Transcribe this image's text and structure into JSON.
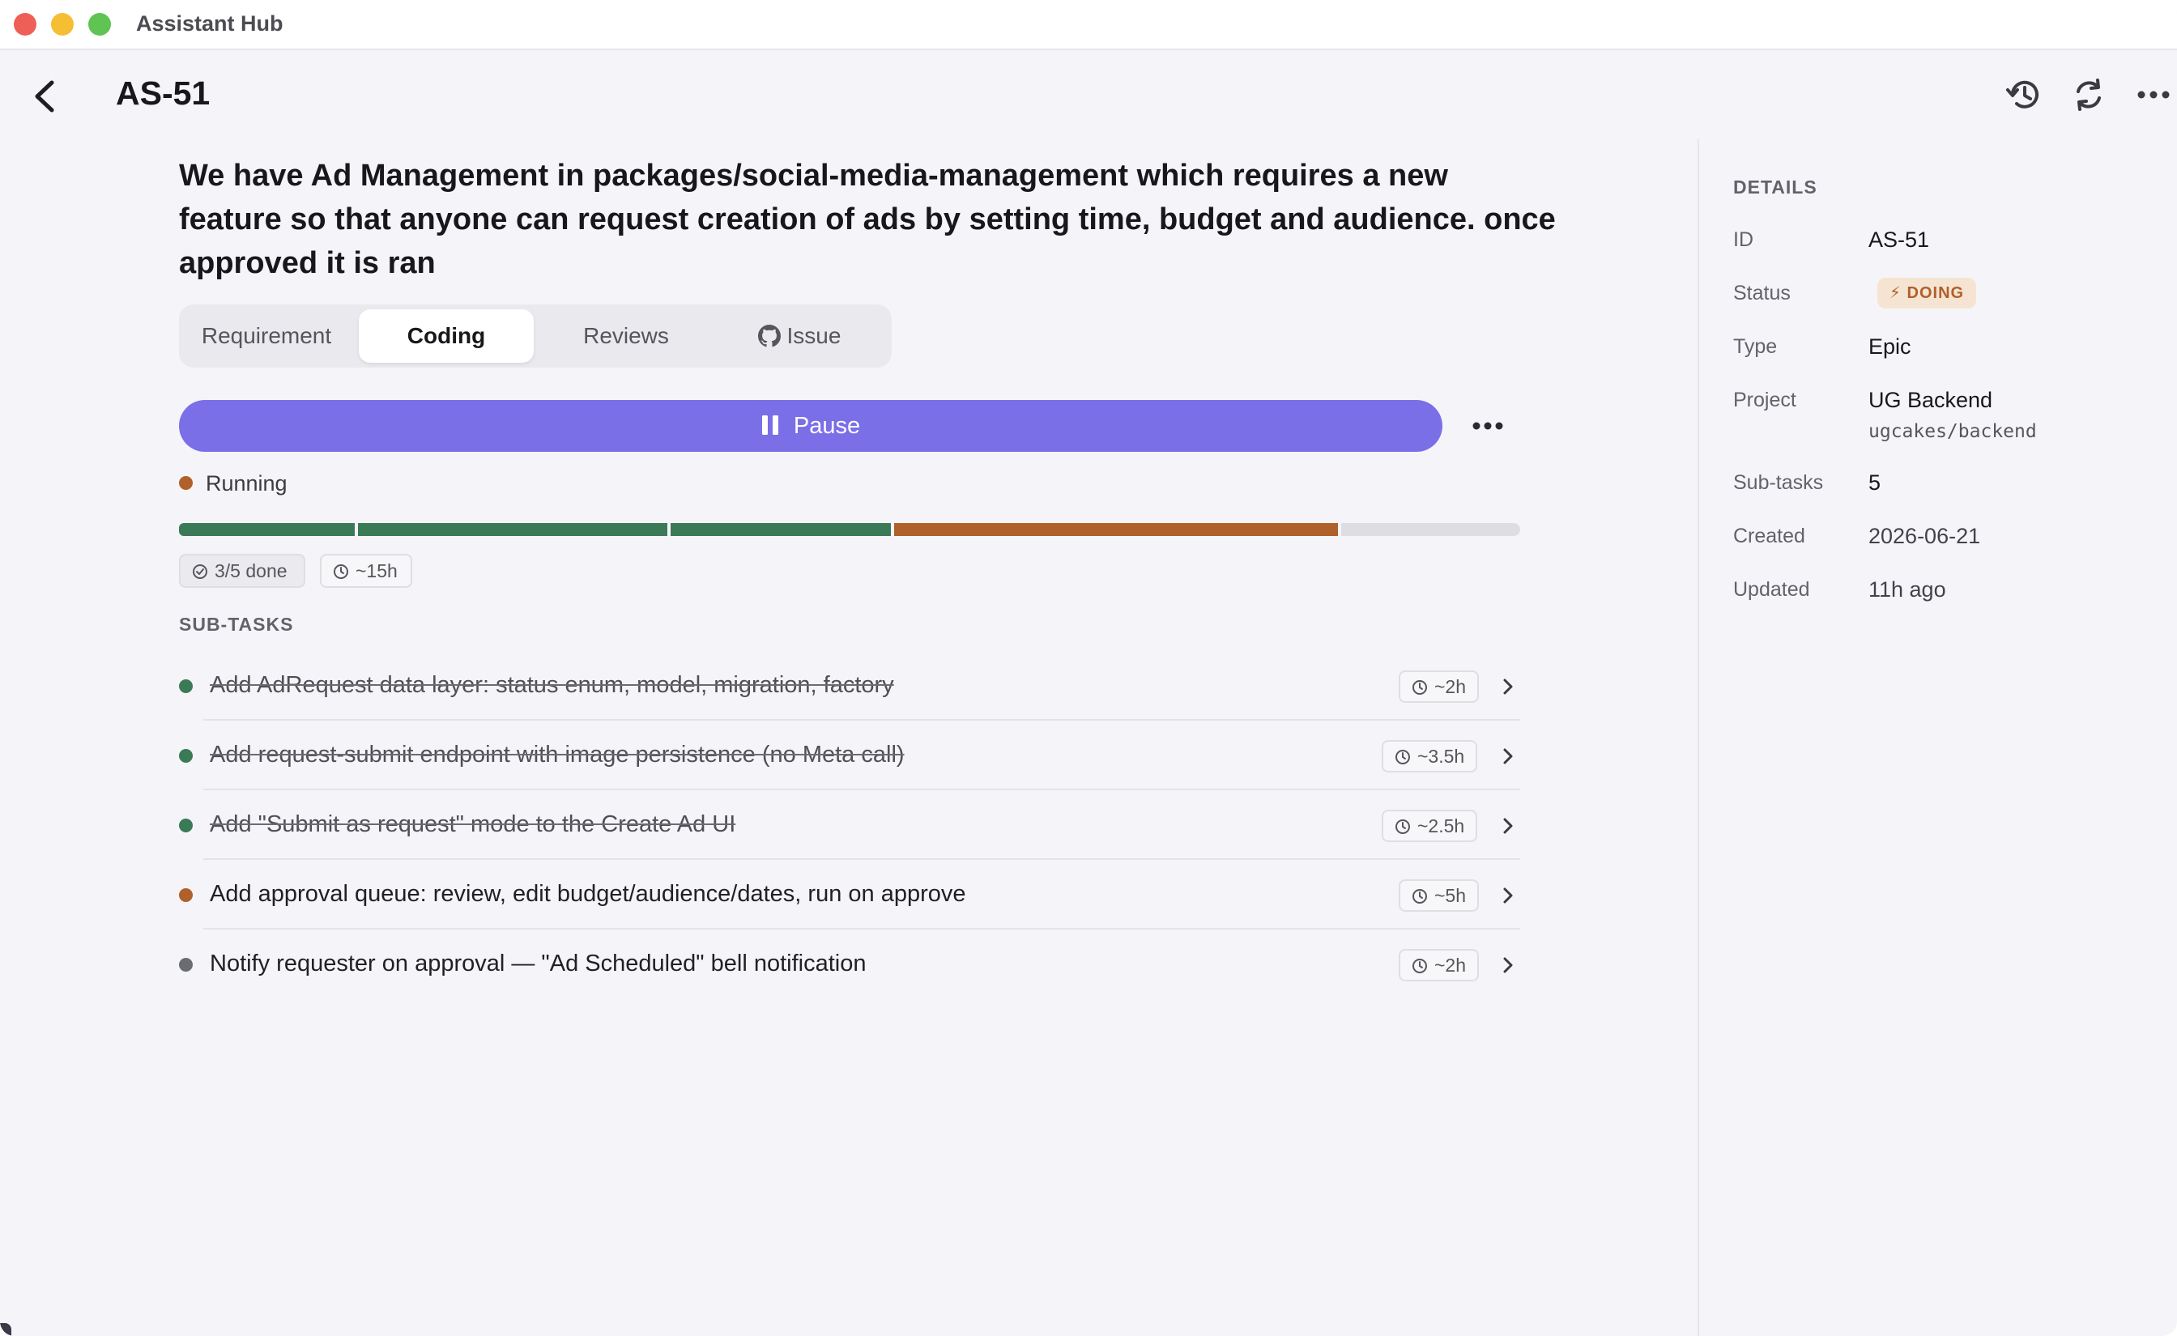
{
  "app": {
    "title": "Assistant Hub"
  },
  "header": {
    "title": "AS-51"
  },
  "description": "We have Ad Management in packages/social-media-management which requires a new feature so that anyone can request creation of ads by setting time, budget and audience. once approved it is ran",
  "tabs": [
    {
      "label": "Requirement",
      "active": false
    },
    {
      "label": "Coding",
      "active": true
    },
    {
      "label": "Reviews",
      "active": false
    },
    {
      "label": "Issue",
      "active": false,
      "icon": "github-icon"
    }
  ],
  "controls": {
    "pause_label": "Pause"
  },
  "status": {
    "label": "Running",
    "color": "#b0602a"
  },
  "progress": {
    "segments": [
      {
        "state": "done",
        "weight": 2,
        "color": "#3b7a57"
      },
      {
        "state": "done",
        "weight": 3.5,
        "color": "#3b7a57"
      },
      {
        "state": "done",
        "weight": 2.5,
        "color": "#3b7a57"
      },
      {
        "state": "running",
        "weight": 5,
        "color": "#b0602a"
      },
      {
        "state": "todo",
        "weight": 2,
        "color": "#dedee2"
      }
    ]
  },
  "summary": {
    "done": "3/5 done",
    "estimate": "~15h"
  },
  "subtasks": {
    "label": "SUB-TASKS",
    "items": [
      {
        "title": "Add AdRequest data layer: status enum, model, migration, factory",
        "estimate": "~2h",
        "state": "done",
        "color": "#3b7a57"
      },
      {
        "title": "Add request-submit endpoint with image persistence (no Meta call)",
        "estimate": "~3.5h",
        "state": "done",
        "color": "#3b7a57"
      },
      {
        "title": "Add \"Submit as request\" mode to the Create Ad UI",
        "estimate": "~2.5h",
        "state": "done",
        "color": "#3b7a57"
      },
      {
        "title": "Add approval queue: review, edit budget/audience/dates, run on approve",
        "estimate": "~5h",
        "state": "running",
        "color": "#b0602a"
      },
      {
        "title": "Notify requester on approval — \"Ad Scheduled\" bell notification",
        "estimate": "~2h",
        "state": "todo",
        "color": "#6b6b72"
      }
    ]
  },
  "details": {
    "label": "DETAILS",
    "id_label": "ID",
    "id": "AS-51",
    "status_label": "Status",
    "status": "DOING",
    "type_label": "Type",
    "type": "Epic",
    "project_label": "Project",
    "project": "UG Backend",
    "repo": "ugcakes/backend",
    "subtasks_label": "Sub-tasks",
    "subtasks": "5",
    "created_label": "Created",
    "created": "2026-06-21",
    "updated_label": "Updated",
    "updated": "11h ago"
  }
}
